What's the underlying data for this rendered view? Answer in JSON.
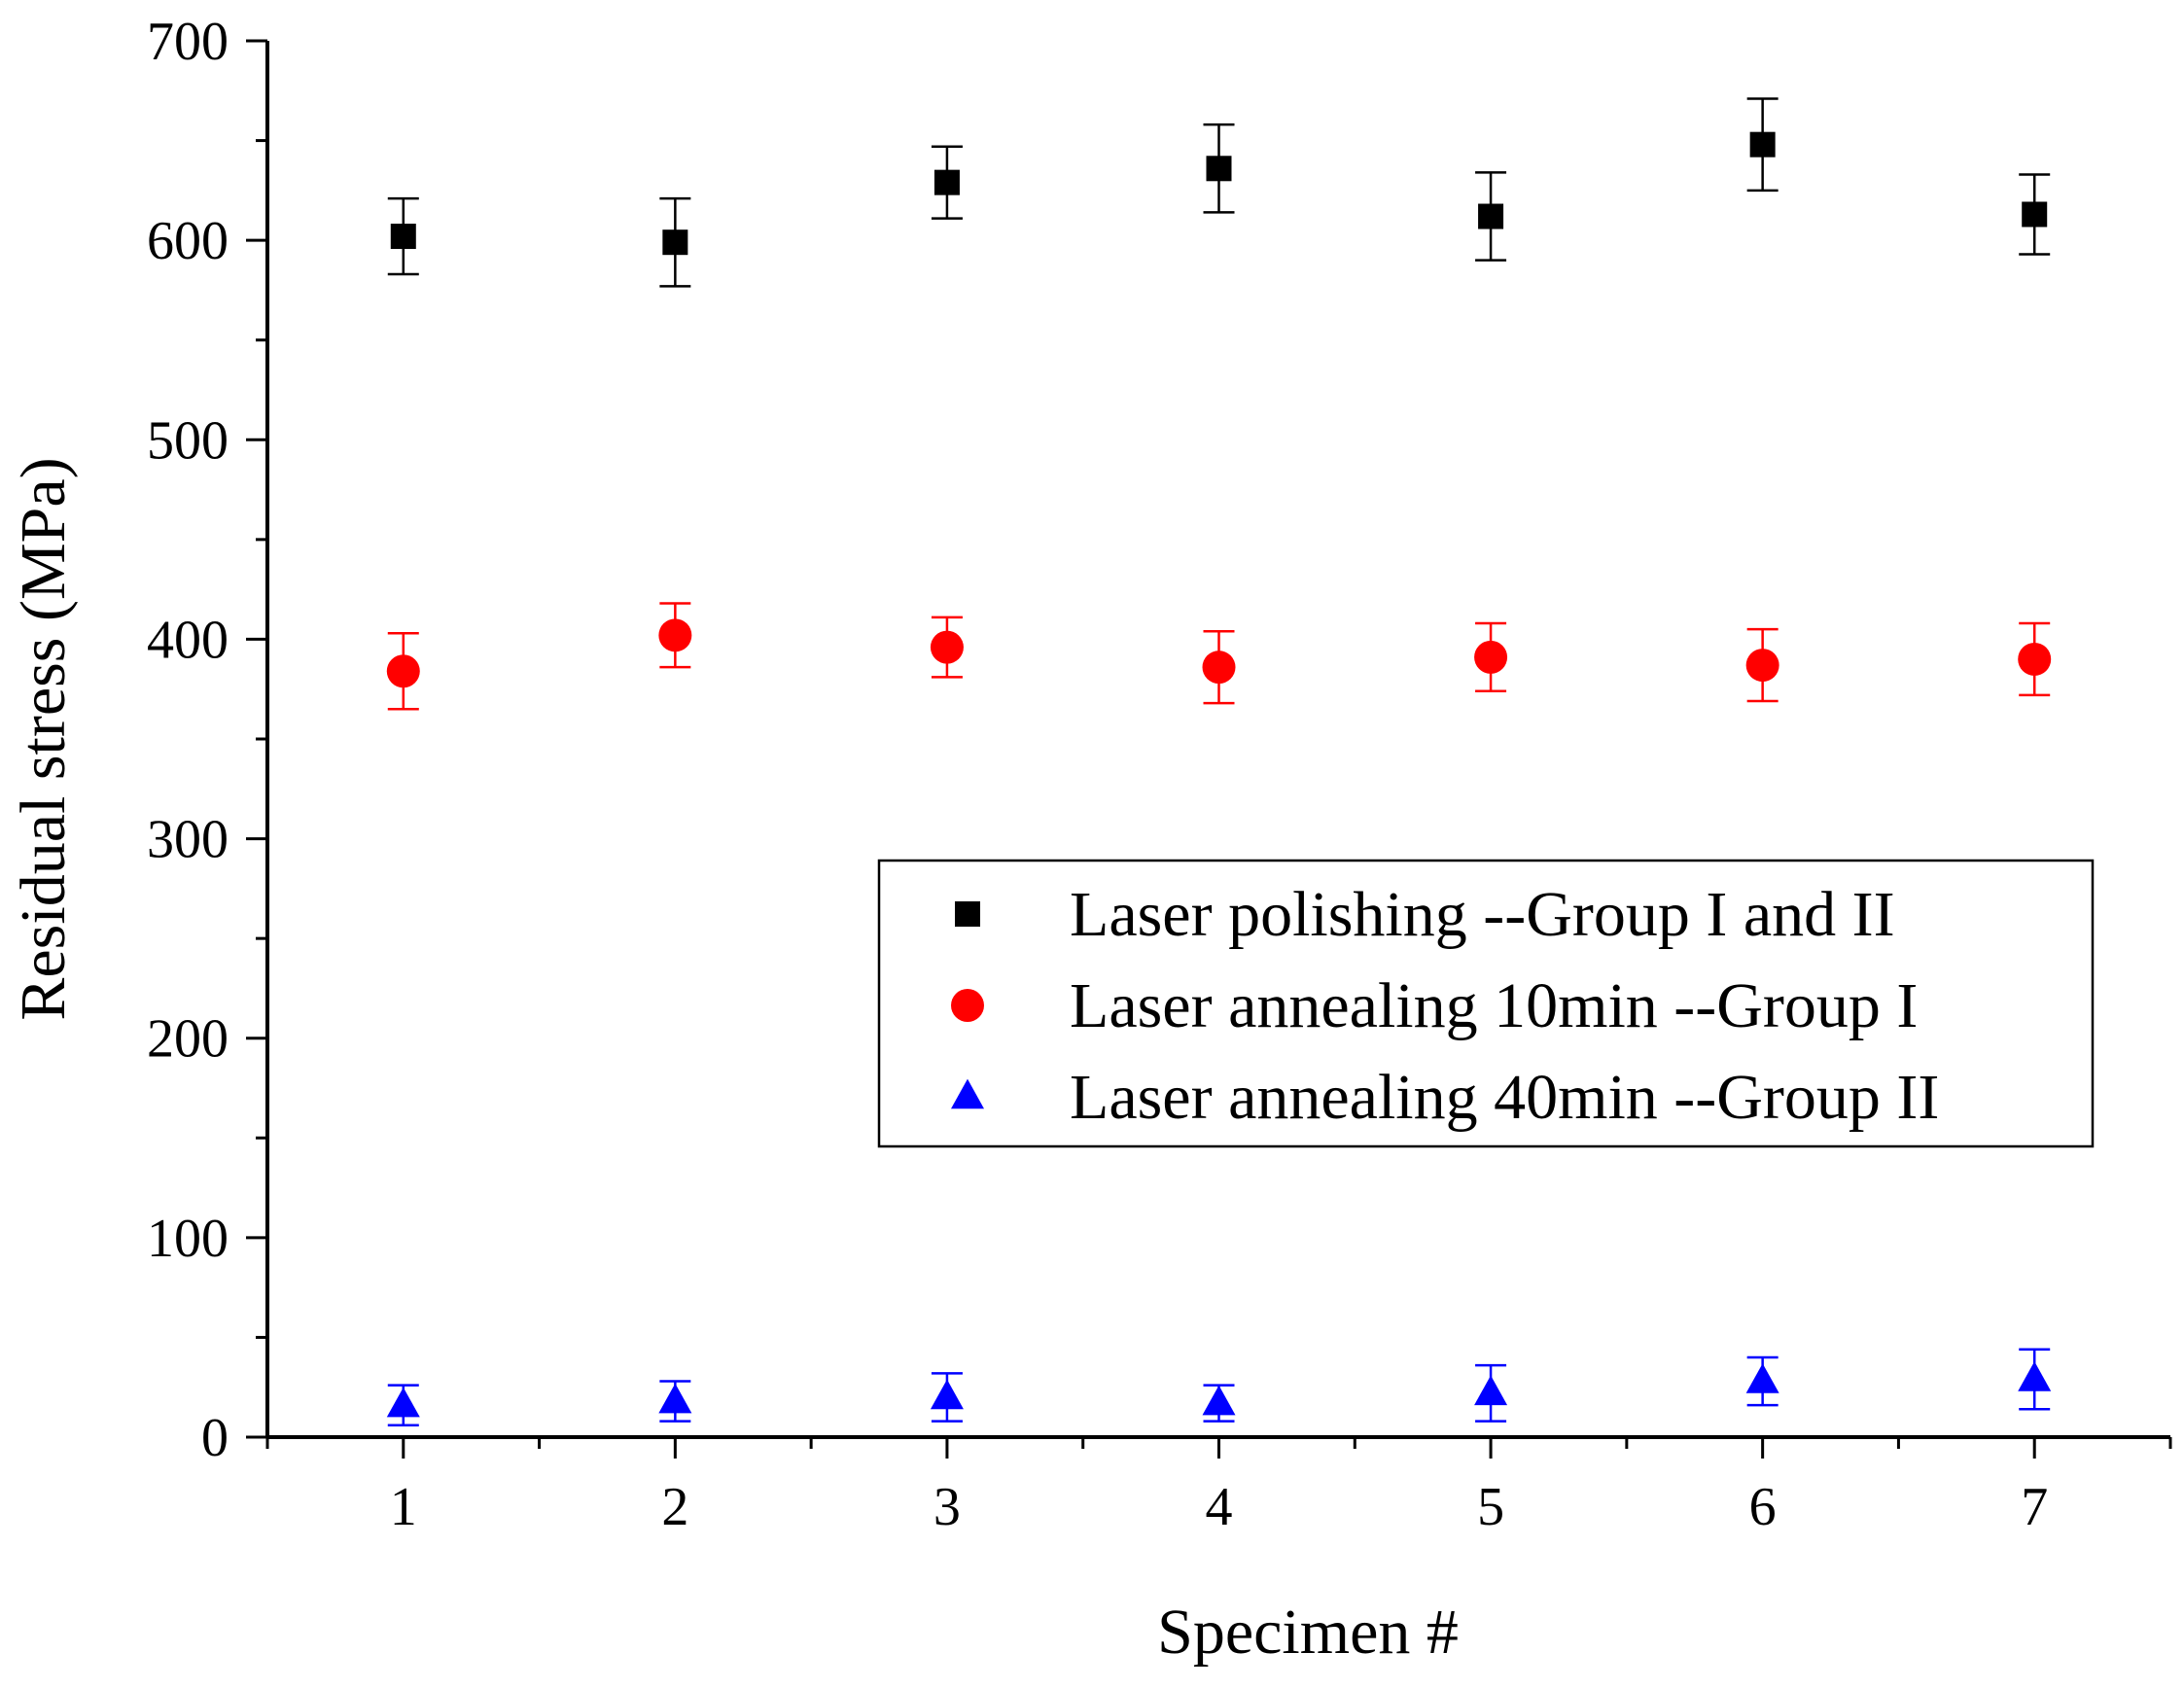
{
  "chart_data": {
    "type": "scatter",
    "title": "",
    "xlabel": "Specimen #",
    "ylabel": "Residual stress (MPa)",
    "xlim": [
      0.5,
      7.5
    ],
    "ylim": [
      0,
      700
    ],
    "x": [
      1,
      2,
      3,
      4,
      5,
      6,
      7
    ],
    "x_tick_labels": [
      "1",
      "2",
      "3",
      "4",
      "5",
      "6",
      "7"
    ],
    "y_ticks": [
      0,
      100,
      200,
      300,
      400,
      500,
      600,
      700
    ],
    "y_tick_labels": [
      "0",
      "100",
      "200",
      "300",
      "400",
      "500",
      "600",
      "700"
    ],
    "grid": false,
    "legend_position": "center-right",
    "series": [
      {
        "name": "Laser polishing --Group I and II",
        "marker": "square",
        "color": "#000000",
        "values": [
          602,
          599,
          629,
          636,
          612,
          648,
          613
        ],
        "errors": [
          19,
          22,
          18,
          22,
          22,
          23,
          20
        ]
      },
      {
        "name": "Laser annealing 10min --Group I",
        "marker": "circle",
        "color": "#ff0000",
        "values": [
          384,
          402,
          396,
          386,
          391,
          387,
          390
        ],
        "errors": [
          19,
          16,
          15,
          18,
          17,
          18,
          18
        ]
      },
      {
        "name": "Laser annealing 40min --Group II",
        "marker": "triangle",
        "color": "#0000ff",
        "values": [
          16,
          18,
          20,
          17,
          22,
          28,
          29
        ],
        "errors": [
          10,
          10,
          12,
          9,
          14,
          12,
          15
        ]
      }
    ]
  }
}
